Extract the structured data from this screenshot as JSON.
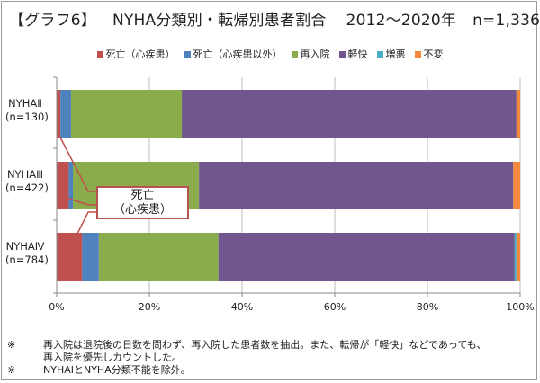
{
  "title": {
    "tag": "【グラフ6】",
    "main": "NYHA分類別・転帰別患者割合",
    "period": "2012〜2020年",
    "n": "n=1,336"
  },
  "legend": [
    {
      "label": "死亡（心疾患）",
      "color": "#c0504d"
    },
    {
      "label": "死亡（心疾患以外）",
      "color": "#4f81bd"
    },
    {
      "label": "再入院",
      "color": "#8aac4c"
    },
    {
      "label": "軽快",
      "color": "#71578e"
    },
    {
      "label": "増悪",
      "color": "#4bacc6"
    },
    {
      "label": "不変",
      "color": "#f2893d"
    }
  ],
  "rows": [
    {
      "line1": "NYHAⅡ",
      "line2": "(n=130)"
    },
    {
      "line1": "NYHAⅢ",
      "line2": "(n=422)"
    },
    {
      "line1": "NYHAⅣ",
      "line2": "(n=784)"
    }
  ],
  "callout": {
    "line1": "死亡",
    "line2": "（心疾患）"
  },
  "notes": {
    "note1_mark": "※",
    "note1_line1": "再入院は退院後の日数を問わず、再入院した患者数を抽出。また、転帰が「軽快」などであっても、",
    "note1_line2": "再入院を優先しカウントした。",
    "note2_mark": "※",
    "note2_text": "NYHAⅠとNYHA分類不能を除外。"
  },
  "chart_data": {
    "type": "bar",
    "orientation": "horizontal",
    "stacked": "percent",
    "categories": [
      "NYHAⅡ (n=130)",
      "NYHAⅢ (n=422)",
      "NYHAⅣ (n=784)"
    ],
    "series": [
      {
        "name": "死亡（心疾患）",
        "color": "#c0504d",
        "values": [
          0.8,
          2.6,
          5.5
        ]
      },
      {
        "name": "死亡（心疾患以外）",
        "color": "#4f81bd",
        "values": [
          2.3,
          0.9,
          3.6
        ]
      },
      {
        "name": "再入院",
        "color": "#8aac4c",
        "values": [
          23.9,
          27.2,
          25.8
        ]
      },
      {
        "name": "軽快",
        "color": "#71578e",
        "values": [
          72.2,
          67.8,
          63.9
        ]
      },
      {
        "name": "増悪",
        "color": "#4bacc6",
        "values": [
          0.0,
          0.0,
          0.4
        ]
      },
      {
        "name": "不変",
        "color": "#f2893d",
        "values": [
          0.8,
          1.5,
          0.8
        ]
      }
    ],
    "xlim": [
      0,
      100
    ],
    "xticks": [
      "0%",
      "20%",
      "40%",
      "60%",
      "80%",
      "100%"
    ],
    "grid": true,
    "legend_position": "top"
  }
}
